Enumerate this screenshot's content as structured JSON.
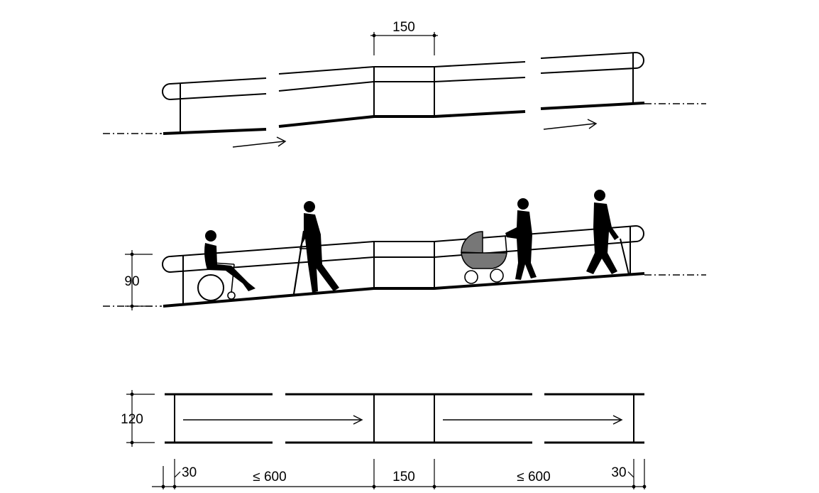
{
  "top_view": {
    "landing_width_label": "150"
  },
  "side_view": {
    "handrail_height_label": "90",
    "figures": [
      "wheelchair-user",
      "person-with-crutch",
      "person-with-pram",
      "person-with-cane"
    ]
  },
  "plan_view": {
    "width_label": "120"
  },
  "bottom_dimensions": {
    "left_extension": "30",
    "left_ramp_max": "≤ 600",
    "landing": "150",
    "right_ramp_max": "≤ 600",
    "right_extension": "30"
  }
}
